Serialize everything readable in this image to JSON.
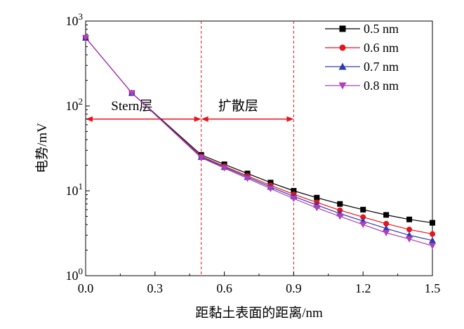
{
  "chart_data": {
    "type": "line",
    "xlabel": "距黏土表面的距离/nm",
    "ylabel": "电势/mV",
    "xlim": [
      0,
      1.5
    ],
    "ylim": [
      1,
      1000
    ],
    "yscale": "log",
    "xticks": [
      "0.0",
      "0.3",
      "0.6",
      "0.9",
      "1.2",
      "1.5"
    ],
    "yticks": [
      {
        "value": 1,
        "base": "10",
        "exp": "0"
      },
      {
        "value": 10,
        "base": "10",
        "exp": "1"
      },
      {
        "value": 100,
        "base": "10",
        "exp": "2"
      },
      {
        "value": 1000,
        "base": "10",
        "exp": "3"
      }
    ],
    "grid": false,
    "legend_position": "top-right",
    "x": [
      0.0,
      0.2,
      0.5,
      0.6,
      0.7,
      0.8,
      0.9,
      1.0,
      1.1,
      1.2,
      1.3,
      1.4,
      1.5
    ],
    "series": [
      {
        "name": "0.5 nm",
        "color": "#000000",
        "marker": "square",
        "values": [
          635,
          142,
          26.5,
          20.5,
          16.0,
          12.5,
          10.0,
          8.3,
          7.0,
          6.0,
          5.2,
          4.6,
          4.2
        ]
      },
      {
        "name": "0.6 nm",
        "color": "#e8141c",
        "marker": "circle",
        "values": [
          635,
          142,
          25.5,
          19.5,
          15.0,
          11.6,
          9.1,
          7.3,
          5.9,
          4.9,
          4.1,
          3.5,
          3.1
        ]
      },
      {
        "name": "0.7 nm",
        "color": "#2b3bb0",
        "marker": "triangle-up",
        "values": [
          635,
          142,
          25.0,
          19.0,
          14.5,
          11.1,
          8.6,
          6.8,
          5.4,
          4.4,
          3.6,
          3.0,
          2.6
        ]
      },
      {
        "name": "0.8 nm",
        "color": "#b040b8",
        "marker": "triangle-down",
        "values": [
          635,
          142,
          24.5,
          18.5,
          14.0,
          10.6,
          8.1,
          6.3,
          5.0,
          4.0,
          3.2,
          2.7,
          2.25
        ]
      }
    ],
    "vlines": [
      {
        "x": 0.5,
        "color": "#e8141c",
        "style": "dashed"
      },
      {
        "x": 0.9,
        "color": "#e8141c",
        "style": "dashed"
      }
    ],
    "annotations": [
      {
        "label": "Stern层",
        "from": 0.0,
        "to": 0.5,
        "y": 70,
        "label_x": 0.2,
        "label_y": 100
      },
      {
        "label": "扩散层",
        "from": 0.5,
        "to": 0.9,
        "y": 70,
        "label_x": 0.66,
        "label_y": 100
      }
    ]
  }
}
